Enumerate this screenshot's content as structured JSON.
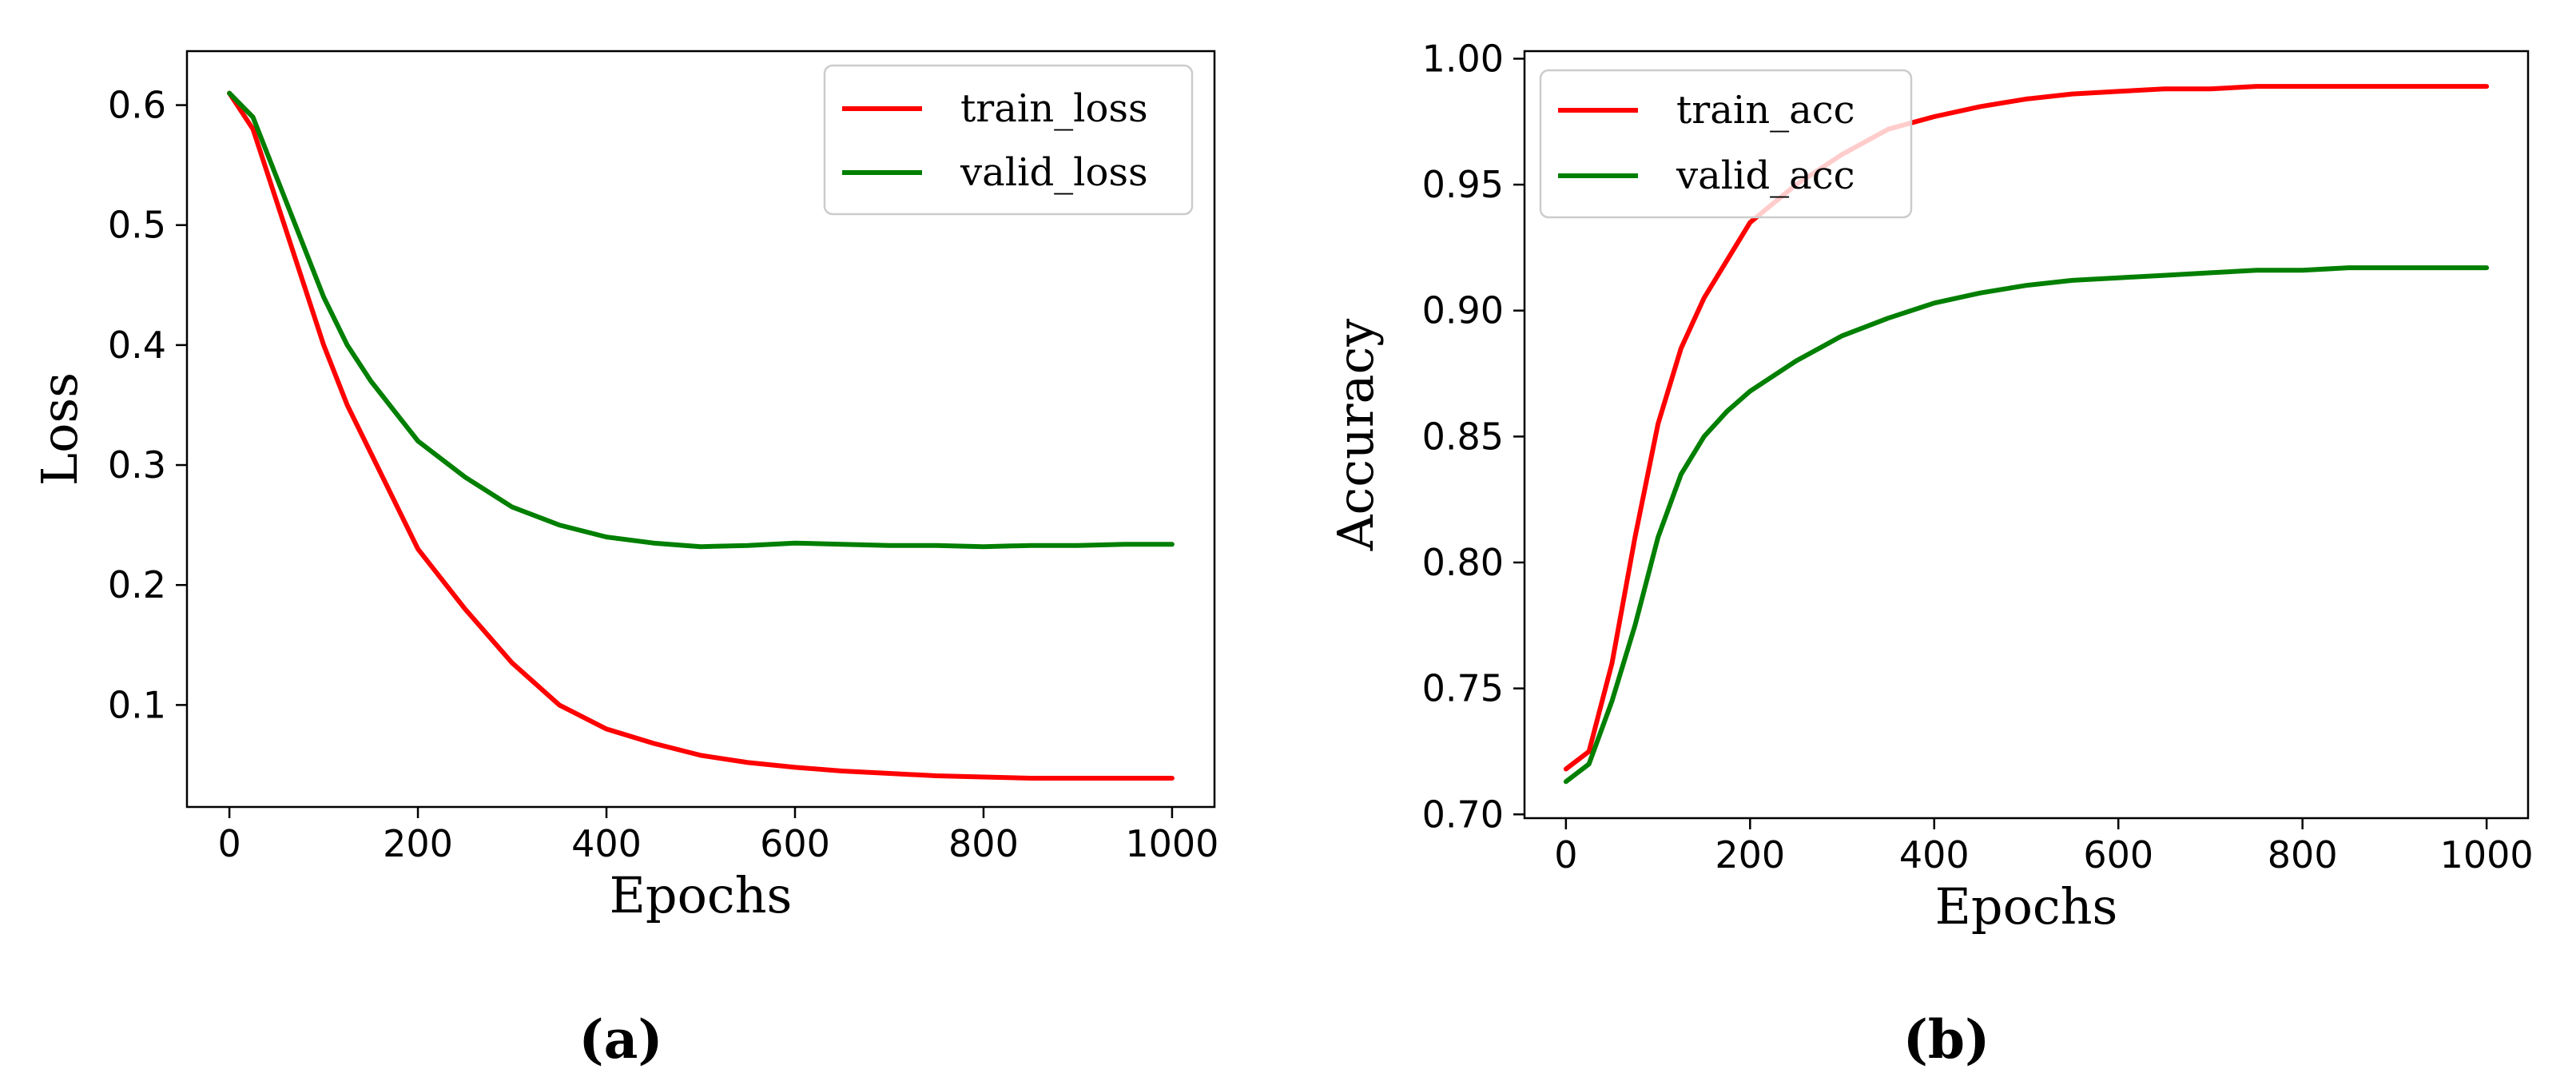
{
  "chart_data": [
    {
      "type": "line",
      "panel_label": "(a)",
      "title": "",
      "xlabel": "Epochs",
      "ylabel": "Loss",
      "xlim": [
        -45,
        1045
      ],
      "ylim": [
        0.015,
        0.645
      ],
      "xticks": [
        0,
        200,
        400,
        600,
        800,
        1000
      ],
      "xtick_labels": [
        "0",
        "200",
        "400",
        "600",
        "800",
        "1000"
      ],
      "yticks": [
        0.1,
        0.2,
        0.3,
        0.4,
        0.5,
        0.6
      ],
      "ytick_labels": [
        "0.1",
        "0.2",
        "0.3",
        "0.4",
        "0.5",
        "0.6"
      ],
      "grid": false,
      "legend_position": "upper-right",
      "x": [
        0,
        25,
        50,
        75,
        100,
        125,
        150,
        175,
        200,
        250,
        300,
        350,
        400,
        450,
        500,
        550,
        600,
        650,
        700,
        750,
        800,
        850,
        900,
        950,
        1000
      ],
      "series": [
        {
          "name": "train_loss",
          "color": "#ff0000",
          "values": [
            0.61,
            0.58,
            0.52,
            0.46,
            0.4,
            0.35,
            0.31,
            0.27,
            0.23,
            0.18,
            0.135,
            0.1,
            0.08,
            0.068,
            0.058,
            0.052,
            0.048,
            0.045,
            0.043,
            0.041,
            0.04,
            0.039,
            0.039,
            0.039,
            0.039
          ]
        },
        {
          "name": "valid_loss",
          "color": "#007f00",
          "values": [
            0.61,
            0.59,
            0.54,
            0.49,
            0.44,
            0.4,
            0.37,
            0.345,
            0.32,
            0.29,
            0.265,
            0.25,
            0.24,
            0.235,
            0.232,
            0.233,
            0.235,
            0.234,
            0.233,
            0.233,
            0.232,
            0.233,
            0.233,
            0.234,
            0.234
          ]
        }
      ]
    },
    {
      "type": "line",
      "panel_label": "(b)",
      "title": "",
      "xlabel": "Epochs",
      "ylabel": "Accuracy",
      "xlim": [
        -45,
        1045
      ],
      "ylim": [
        0.6985,
        1.003
      ],
      "xticks": [
        0,
        200,
        400,
        600,
        800,
        1000
      ],
      "xtick_labels": [
        "0",
        "200",
        "400",
        "600",
        "800",
        "1000"
      ],
      "yticks": [
        0.7,
        0.75,
        0.8,
        0.85,
        0.9,
        0.95,
        1.0
      ],
      "ytick_labels": [
        "0.70",
        "0.75",
        "0.80",
        "0.85",
        "0.90",
        "0.95",
        "1.00"
      ],
      "grid": false,
      "legend_position": "upper-left",
      "x": [
        0,
        25,
        50,
        75,
        100,
        125,
        150,
        175,
        200,
        250,
        300,
        350,
        400,
        450,
        500,
        550,
        600,
        650,
        700,
        750,
        800,
        850,
        900,
        950,
        1000
      ],
      "series": [
        {
          "name": "train_acc",
          "color": "#ff0000",
          "values": [
            0.718,
            0.725,
            0.76,
            0.81,
            0.855,
            0.885,
            0.905,
            0.92,
            0.935,
            0.95,
            0.962,
            0.972,
            0.977,
            0.981,
            0.984,
            0.986,
            0.987,
            0.988,
            0.988,
            0.989,
            0.989,
            0.989,
            0.989,
            0.989,
            0.989
          ]
        },
        {
          "name": "valid_acc",
          "color": "#007f00",
          "values": [
            0.713,
            0.72,
            0.745,
            0.775,
            0.81,
            0.835,
            0.85,
            0.86,
            0.868,
            0.88,
            0.89,
            0.897,
            0.903,
            0.907,
            0.91,
            0.912,
            0.913,
            0.914,
            0.915,
            0.916,
            0.916,
            0.917,
            0.917,
            0.917,
            0.917
          ]
        }
      ]
    }
  ]
}
